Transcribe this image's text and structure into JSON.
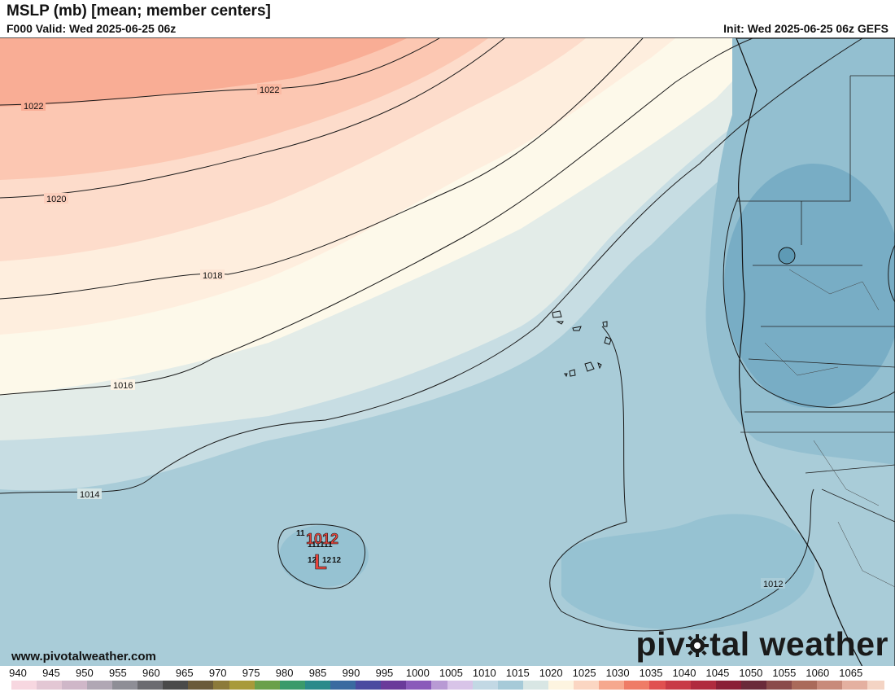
{
  "header": {
    "title": "MSLP (mb) [mean; member centers]",
    "valid": "F000 Valid: Wed 2025-06-25 06z",
    "init": "Init: Wed 2025-06-25 06z GEFS"
  },
  "map": {
    "isobar_labels": [
      "1022",
      "1022",
      "1020",
      "1018",
      "1016",
      "1014",
      "1012"
    ],
    "low": {
      "symbol": "L",
      "mean_value": "1012",
      "member_values": [
        "11",
        "11",
        "11",
        "11",
        "12",
        "12",
        "12"
      ]
    }
  },
  "footer": {
    "website": "www.pivotalweather.com",
    "brand_left": "piv",
    "brand_right": "tal weather"
  },
  "colorbar": {
    "ticks": [
      "940",
      "945",
      "950",
      "955",
      "960",
      "965",
      "970",
      "975",
      "980",
      "985",
      "990",
      "995",
      "1000",
      "1005",
      "1010",
      "1015",
      "1020",
      "1025",
      "1030",
      "1035",
      "1040",
      "1045",
      "1050",
      "1055",
      "1060",
      "1065"
    ]
  }
}
